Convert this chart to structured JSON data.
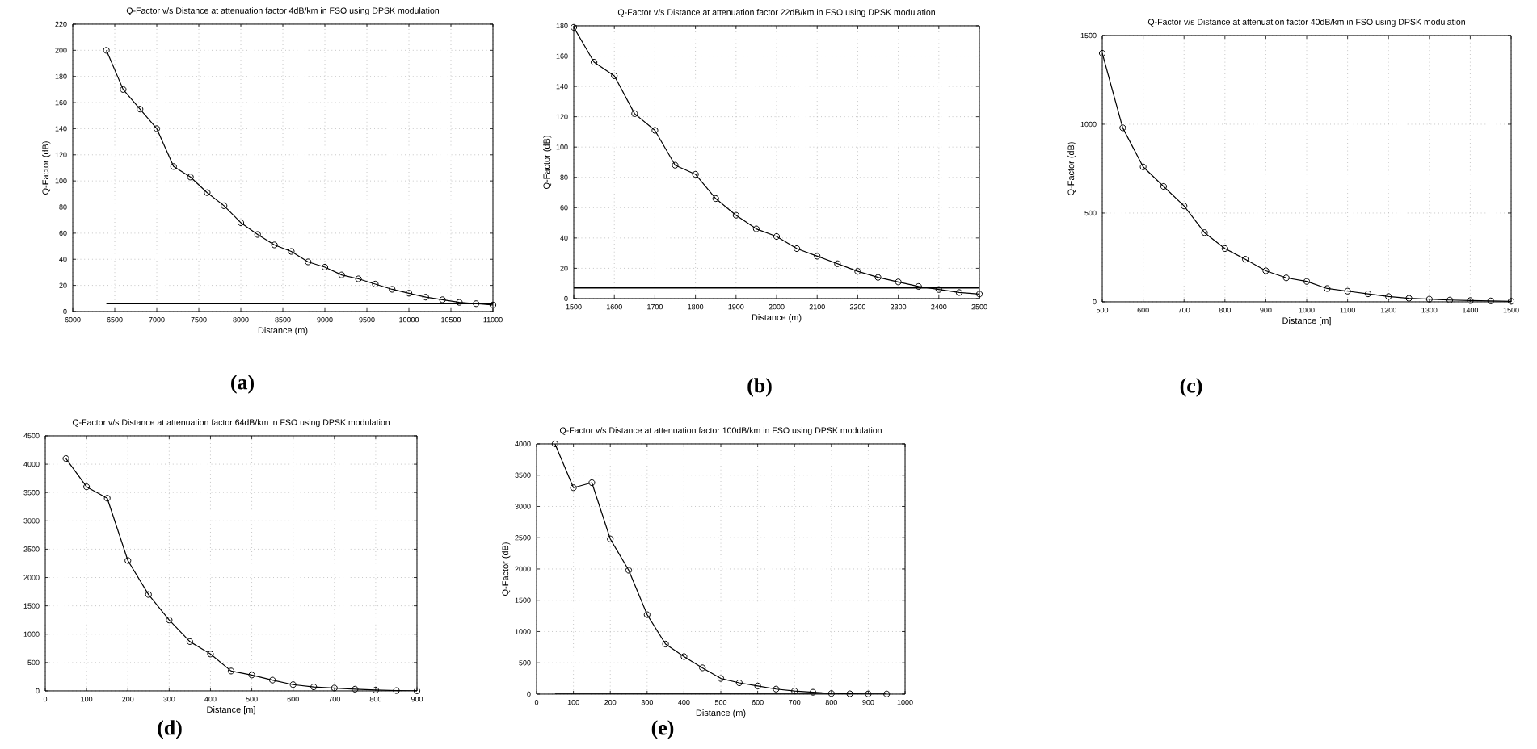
{
  "chart_data": [
    {
      "type": "line",
      "title": "Q-Factor v/s Distance at attenuation factor 4dB/km in FSO using DPSK modulation",
      "xlabel": "Distance (m)",
      "ylabel": "Q-Factor (dB)",
      "annotations": [
        "(a)"
      ],
      "grid": true,
      "marker": "circle",
      "line_style": "solid",
      "xlim": [
        6000,
        11000
      ],
      "ylim": [
        0,
        220
      ],
      "xticks": [
        6000,
        6500,
        7000,
        7500,
        8000,
        8500,
        9000,
        9500,
        10000,
        10500,
        11000
      ],
      "yticks": [
        0,
        20,
        40,
        60,
        80,
        100,
        120,
        140,
        160,
        180,
        200,
        220
      ],
      "series": [
        {
          "color": "#000000",
          "x": [
            6400,
            6600,
            6800,
            7000,
            7200,
            7400,
            7600,
            7800,
            8000,
            8200,
            8400,
            8600,
            8800,
            9000,
            9200,
            9400,
            9600,
            9800,
            10000,
            10200,
            10400,
            10600,
            10800,
            11000
          ],
          "values": [
            200,
            170,
            155,
            140,
            111,
            103,
            91,
            81,
            68,
            59,
            51,
            46,
            38,
            34,
            28,
            25,
            21,
            17,
            14,
            11,
            9,
            7,
            6,
            5
          ]
        },
        {
          "color": "#000000",
          "marker": "none",
          "x": [
            6400,
            11000
          ],
          "values": [
            6,
            6
          ]
        }
      ]
    },
    {
      "type": "line",
      "title": "Q-Factor v/s Distance at attenuation factor 22dB/km in FSO using DPSK modulation",
      "xlabel": "Distance (m)",
      "ylabel": "Q-Factor (dB)",
      "annotations": [
        "(b)"
      ],
      "grid": true,
      "marker": "circle",
      "line_style": "solid",
      "xlim": [
        1500,
        2500
      ],
      "ylim": [
        0,
        180
      ],
      "xticks": [
        1500,
        1600,
        1700,
        1800,
        1900,
        2000,
        2100,
        2200,
        2300,
        2400,
        2500
      ],
      "yticks": [
        0,
        20,
        40,
        60,
        80,
        100,
        120,
        140,
        160,
        180
      ],
      "series": [
        {
          "color": "#000000",
          "x": [
            1500,
            1550,
            1600,
            1650,
            1700,
            1750,
            1800,
            1850,
            1900,
            1950,
            2000,
            2050,
            2100,
            2150,
            2200,
            2250,
            2300,
            2350,
            2400,
            2450,
            2500
          ],
          "values": [
            179,
            156,
            147,
            122,
            111,
            88,
            82,
            66,
            55,
            46,
            41,
            33,
            28,
            23,
            18,
            14,
            11,
            8,
            6,
            4,
            3
          ]
        },
        {
          "color": "#000000",
          "marker": "none",
          "x": [
            1500,
            2500
          ],
          "values": [
            7,
            7
          ]
        }
      ]
    },
    {
      "type": "line",
      "title": "Q-Factor v/s Distance at attenuation factor 40dB/km in FSO using DPSK modulation",
      "xlabel": "Distance [m]",
      "ylabel": "Q-Factor (dB)",
      "annotations": [
        "(c)"
      ],
      "grid": true,
      "marker": "circle",
      "line_style": "solid",
      "xlim": [
        500,
        1500
      ],
      "ylim": [
        0,
        1500
      ],
      "xticks": [
        500,
        600,
        700,
        800,
        900,
        1000,
        1100,
        1200,
        1300,
        1400,
        1500
      ],
      "yticks": [
        0,
        500,
        1000,
        1500
      ],
      "series": [
        {
          "color": "#000000",
          "x": [
            500,
            550,
            600,
            650,
            700,
            750,
            800,
            850,
            900,
            950,
            1000,
            1050,
            1100,
            1150,
            1200,
            1250,
            1300,
            1350,
            1400,
            1450,
            1500
          ],
          "values": [
            1400,
            980,
            760,
            650,
            540,
            390,
            300,
            240,
            175,
            135,
            115,
            75,
            60,
            45,
            30,
            20,
            15,
            10,
            7,
            5,
            3
          ]
        }
      ]
    },
    {
      "type": "line",
      "title": "Q-Factor v/s Distance at attenuation factor 64dB/km in FSO using DPSK modulation",
      "xlabel": "Distance [m]",
      "annotations": [
        "(d)"
      ],
      "grid": true,
      "marker": "circle",
      "line_style": "solid",
      "xlim": [
        0,
        900
      ],
      "ylim": [
        0,
        4500
      ],
      "xticks": [
        0,
        100,
        200,
        300,
        400,
        500,
        600,
        700,
        800,
        900
      ],
      "yticks": [
        0,
        500,
        1000,
        1500,
        2000,
        2500,
        3000,
        3500,
        4000,
        4500
      ],
      "series": [
        {
          "color": "#000000",
          "x": [
            50,
            100,
            150,
            200,
            250,
            300,
            350,
            400,
            450,
            500,
            550,
            600,
            650,
            700,
            750,
            800,
            850,
            900
          ],
          "values": [
            4100,
            3600,
            3400,
            2300,
            1700,
            1250,
            870,
            650,
            350,
            280,
            190,
            110,
            70,
            50,
            30,
            15,
            5,
            2
          ]
        }
      ]
    },
    {
      "type": "line",
      "title": "Q-Factor v/s Distance at attenuation factor 100dB/km in FSO using DPSK modulation",
      "xlabel": "Distance (m)",
      "ylabel": "Q-Factor (dB)",
      "annotations": [
        "(e)"
      ],
      "grid": true,
      "marker": "circle",
      "line_style": "solid",
      "xlim": [
        0,
        1000
      ],
      "ylim": [
        0,
        4000
      ],
      "xticks": [
        0,
        100,
        200,
        300,
        400,
        500,
        600,
        700,
        800,
        900,
        1000
      ],
      "yticks": [
        0,
        500,
        1000,
        1500,
        2000,
        2500,
        3000,
        3500,
        4000
      ],
      "series": [
        {
          "color": "#000000",
          "x": [
            50,
            100,
            150,
            200,
            250,
            300,
            350,
            400,
            450,
            500,
            550,
            600,
            650,
            700,
            750,
            800,
            850,
            900,
            950
          ],
          "values": [
            4000,
            3300,
            3380,
            2480,
            1980,
            1270,
            800,
            600,
            420,
            250,
            180,
            130,
            80,
            50,
            30,
            10,
            5,
            3,
            2
          ]
        },
        {
          "color": "#000000",
          "marker": "none",
          "x": [
            50,
            800
          ],
          "values": [
            0,
            0
          ]
        }
      ]
    }
  ]
}
